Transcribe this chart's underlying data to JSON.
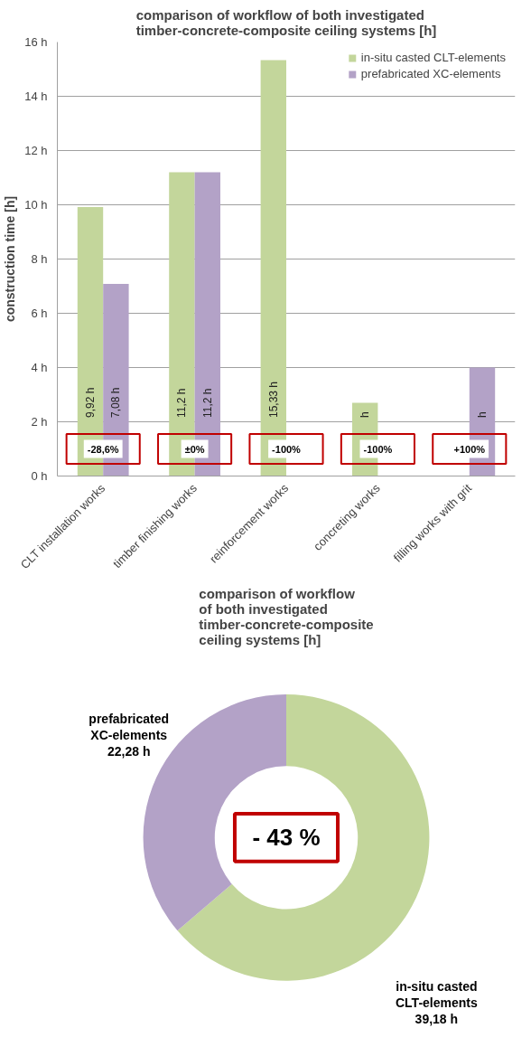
{
  "chart_data": [
    {
      "type": "bar",
      "title": "comparison of workflow of both investigated timber-concrete-composite ceiling systems [h]",
      "ylabel": "construction time [h]",
      "categories": [
        "CLT installation works",
        "timber finishing works",
        "reinforcement works",
        "concreting works",
        "filling works with grit"
      ],
      "series": [
        {
          "name": "in-situ casted CLT-elements",
          "color": "#c3d69b",
          "values": [
            9.92,
            11.2,
            15.33,
            2.7,
            null
          ],
          "value_labels": [
            "9,92 h",
            "11,2 h",
            "15,33 h",
            "h",
            null
          ]
        },
        {
          "name": "prefabricated XC-elements",
          "color": "#b3a2c7",
          "values": [
            7.08,
            11.2,
            null,
            null,
            4.0
          ],
          "value_labels": [
            "7,08 h",
            "11,2 h",
            null,
            null,
            "h"
          ]
        }
      ],
      "ylim": [
        0,
        16
      ],
      "yticks": [
        {
          "value": 0,
          "label": "0 h"
        },
        {
          "value": 2,
          "label": "2 h"
        },
        {
          "value": 4,
          "label": "4 h"
        },
        {
          "value": 6,
          "label": "6 h"
        },
        {
          "value": 8,
          "label": "8 h"
        },
        {
          "value": 10,
          "label": "10 h"
        },
        {
          "value": 12,
          "label": "12 h"
        },
        {
          "value": 14,
          "label": "14 h"
        },
        {
          "value": 16,
          "label": "16 h"
        }
      ],
      "grid": "y",
      "legend": "top right",
      "annotations": [
        "-28,6%",
        "±0%",
        "-100%",
        "-100%",
        "+100%"
      ]
    },
    {
      "type": "donut",
      "title": "comparison of workflow of both investigated timber-concrete-composite ceiling systems [h]",
      "categories": [
        "in-situ casted CLT-elements",
        "prefabricated XC-elements"
      ],
      "values": [
        39.18,
        22.28
      ],
      "colors": [
        "#c3d69b",
        "#b3a2c7"
      ],
      "value_labels": [
        "39,18 h",
        "22,28 h"
      ],
      "annotations": [
        "- 43 %"
      ]
    }
  ]
}
